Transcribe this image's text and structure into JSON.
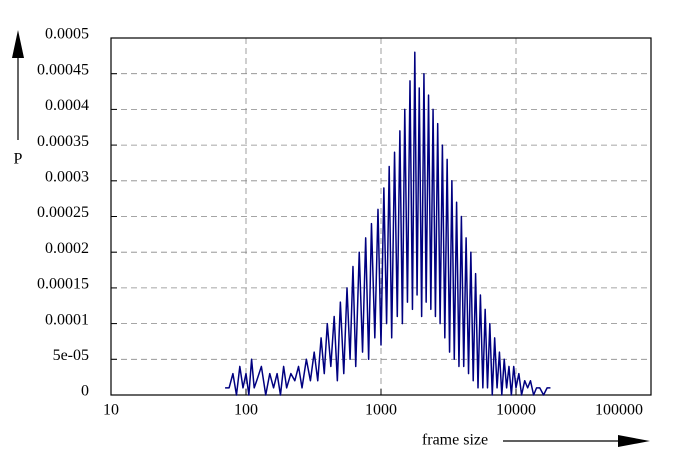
{
  "chart_data": {
    "type": "line",
    "xlabel": "frame size",
    "ylabel": "P",
    "x": [
      70,
      75,
      80,
      85,
      90,
      95,
      100,
      105,
      110,
      115,
      120,
      130,
      140,
      150,
      160,
      170,
      180,
      190,
      200,
      215,
      230,
      245,
      260,
      280,
      300,
      320,
      340,
      360,
      380,
      400,
      425,
      450,
      475,
      500,
      530,
      560,
      590,
      620,
      650,
      690,
      730,
      770,
      810,
      850,
      900,
      950,
      1000,
      1050,
      1100,
      1150,
      1200,
      1260,
      1320,
      1380,
      1440,
      1500,
      1570,
      1640,
      1710,
      1780,
      1850,
      1920,
      2000,
      2080,
      2160,
      2250,
      2340,
      2430,
      2530,
      2630,
      2740,
      2850,
      2970,
      3090,
      3220,
      3350,
      3490,
      3630,
      3780,
      3940,
      4100,
      4270,
      4450,
      4630,
      4820,
      5020,
      5230,
      5450,
      5680,
      5910,
      6150,
      6400,
      6670,
      6950,
      7240,
      7540,
      7850,
      8180,
      8520,
      8870,
      9240,
      9620,
      10000,
      10500,
      11000,
      11600,
      12200,
      12800,
      13500,
      14200,
      15000,
      16000,
      17000,
      18000
    ],
    "series": [
      {
        "color": "#000080",
        "values": [
          1e-05,
          1e-05,
          3e-05,
          0,
          4e-05,
          1e-05,
          3e-05,
          0,
          5e-05,
          1e-05,
          2e-05,
          4e-05,
          0,
          3e-05,
          1e-05,
          3e-05,
          0,
          4e-05,
          1e-05,
          3e-05,
          2e-05,
          4e-05,
          1e-05,
          5e-05,
          2e-05,
          6e-05,
          2e-05,
          8e-05,
          3e-05,
          0.0001,
          4e-05,
          0.00011,
          2e-05,
          0.00013,
          3e-05,
          0.00015,
          5e-05,
          0.00018,
          4e-05,
          0.0002,
          6e-05,
          0.00022,
          5e-05,
          0.00024,
          8e-05,
          0.00026,
          7e-05,
          0.00029,
          0.0001,
          0.00032,
          8e-05,
          0.00034,
          0.00011,
          0.00037,
          0.0001,
          0.0004,
          0.00013,
          0.00044,
          0.00012,
          0.00048,
          0.00014,
          0.00043,
          0.00011,
          0.00045,
          0.00013,
          0.00042,
          0.00012,
          0.0004,
          0.00011,
          0.00038,
          0.0001,
          0.00035,
          8e-05,
          0.00033,
          6e-05,
          0.0003,
          5e-05,
          0.00027,
          4e-05,
          0.00025,
          4e-05,
          0.00022,
          3e-05,
          0.0002,
          2e-05,
          0.00017,
          1e-05,
          0.00014,
          1e-05,
          0.00012,
          1e-05,
          0.0001,
          0,
          8e-05,
          1e-05,
          6e-05,
          0,
          5e-05,
          1e-05,
          4e-05,
          0,
          4e-05,
          1e-05,
          3e-05,
          0,
          2e-05,
          1e-05,
          2e-05,
          0,
          1e-05,
          1e-05,
          0,
          1e-05,
          1e-05
        ]
      }
    ],
    "xscale": "log",
    "xlim": [
      10,
      100000
    ],
    "xticks": [
      10,
      100,
      1000,
      10000,
      100000
    ],
    "ylim": [
      0,
      0.0005
    ],
    "yticks": [
      0,
      {
        "value": 5e-05,
        "label": "5e-05"
      },
      0.0001,
      0.00015,
      0.0002,
      0.00025,
      0.0003,
      0.00035,
      0.0004,
      0.00045,
      0.0005
    ],
    "grid": true
  }
}
